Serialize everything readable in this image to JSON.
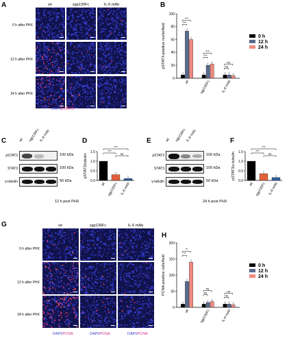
{
  "panels": {
    "A": {
      "letter": "A",
      "columns": [
        "wt",
        "sgp130Fc",
        "IL-6 mAb"
      ],
      "rows": [
        "0 h after PHX",
        "12 h after PHX",
        "24 h after PHX"
      ],
      "stain_dapi": "DAPI/",
      "stain_marker": "pSTAT3"
    },
    "B": {
      "letter": "B",
      "ylabel": "pSTAT3-positive nuclei/field",
      "legend": [
        "0 h",
        "12 h",
        "24 h"
      ],
      "sig": [
        "***",
        "***",
        "ns",
        "***",
        "***",
        "ns",
        "ns"
      ]
    },
    "C": {
      "letter": "C",
      "lanes": [
        "wt",
        "sgp130Fc",
        "IL-6 mAb"
      ],
      "rows": [
        "pSTAT3",
        "STAT3",
        "γ-tubulin"
      ],
      "kda": [
        "100 kDa",
        "100 kDa",
        "50 kDa"
      ],
      "caption": "12 h post PHX"
    },
    "D": {
      "letter": "D",
      "ylabel": "pSTAT3/tubulin",
      "sig": [
        "***",
        "***",
        "ns"
      ]
    },
    "E": {
      "letter": "E",
      "lanes": [
        "wt",
        "sgp130Fc",
        "IL-6 mAb"
      ],
      "rows": [
        "pSTAT3",
        "STAT3",
        "γ-tubulin"
      ],
      "kda": [
        "100 kDa",
        "100 kDa",
        "50 kDa"
      ],
      "caption": "24 h post PHX"
    },
    "F": {
      "letter": "F",
      "ylabel": "pSTAT3/γ-tubulin",
      "sig": [
        "***",
        "***",
        "ns"
      ]
    },
    "G": {
      "letter": "G",
      "columns": [
        "wt",
        "sgp130Fc",
        "IL-6 mAb"
      ],
      "rows": [
        "0 h after PHX",
        "12 h after PHX",
        "24 h after PHX"
      ],
      "stain_dapi": "DAPI/",
      "stain_marker": "PCNA"
    },
    "H": {
      "letter": "H",
      "ylabel": "PCNA-positive cells/field",
      "legend": [
        "0 h",
        "12 h",
        "24 h"
      ],
      "sig": [
        "**",
        "**",
        "ns",
        "ns",
        "ns",
        "ns",
        "ns"
      ]
    }
  },
  "chart_data": [
    {
      "id": "B",
      "type": "bar",
      "categories": [
        "wt",
        "sgp130Fc",
        "IL-6 mAb"
      ],
      "series": [
        {
          "name": "0 h",
          "values": [
            5,
            5,
            5
          ],
          "color": "#000000"
        },
        {
          "name": "12 h",
          "values": [
            73,
            20,
            5
          ],
          "color": "#5a6b8c"
        },
        {
          "name": "24 h",
          "values": [
            60,
            22,
            4
          ],
          "color": "#f08a82"
        }
      ],
      "ylim": [
        0,
        100
      ],
      "yticks": [
        0,
        20,
        40,
        60,
        80,
        100
      ]
    },
    {
      "id": "D",
      "type": "bar",
      "categories": [
        "wt",
        "sgp130Fc",
        "IL-6 mAb"
      ],
      "values": [
        1.0,
        0.3,
        0.1
      ],
      "colors": [
        "#000000",
        "#e0603a",
        "#2f5fa0"
      ],
      "ylim": [
        0,
        1.5
      ],
      "yticks": [
        0.0,
        0.5,
        1.0,
        1.5
      ]
    },
    {
      "id": "F",
      "type": "bar",
      "categories": [
        "wt",
        "sgp130Fc",
        "IL-6 mAb"
      ],
      "values": [
        1.0,
        0.35,
        0.15
      ],
      "colors": [
        "#000000",
        "#e0603a",
        "#2f5fa0"
      ],
      "ylim": [
        0,
        1.5
      ],
      "yticks": [
        0.0,
        0.5,
        1.0,
        1.5
      ]
    },
    {
      "id": "H",
      "type": "bar",
      "categories": [
        "wt",
        "sgp130Fc",
        "IL-6 mAb"
      ],
      "series": [
        {
          "name": "0 h",
          "values": [
            10,
            10,
            10
          ],
          "color": "#000000"
        },
        {
          "name": "12 h",
          "values": [
            80,
            15,
            10
          ],
          "color": "#5a6b8c"
        },
        {
          "name": "24 h",
          "values": [
            140,
            18,
            8
          ],
          "color": "#f08a82"
        }
      ],
      "ylim": [
        0,
        200
      ],
      "yticks": [
        0,
        50,
        100,
        150,
        200
      ]
    }
  ]
}
